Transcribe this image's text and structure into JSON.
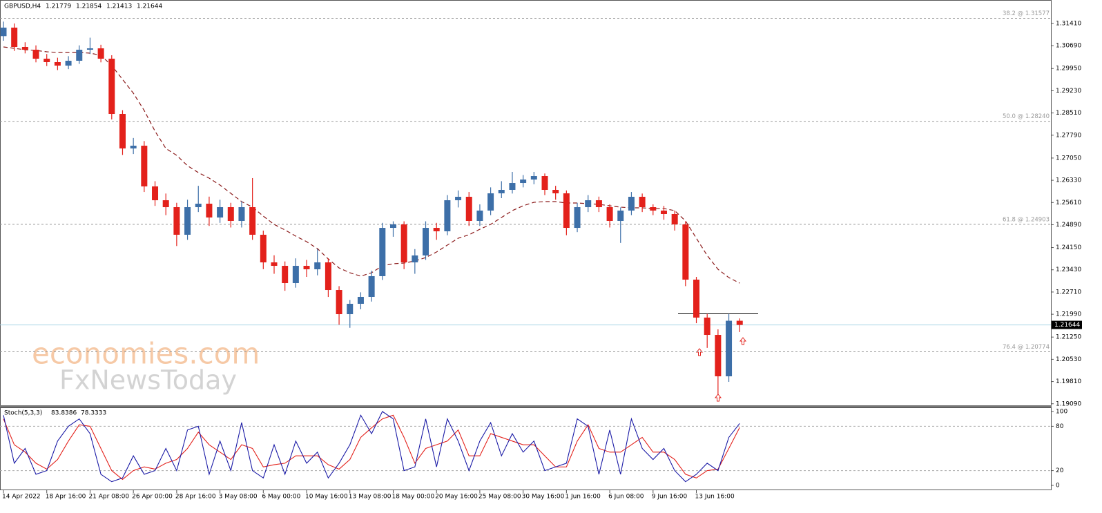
{
  "chart_data": [
    {
      "type": "candlestick",
      "title": "GBPUSD,H4",
      "categories": [
        "14 Apr 2022",
        null,
        null,
        null,
        "18 Apr 16:00",
        null,
        null,
        null,
        "21 Apr 08:00",
        null,
        null,
        null,
        "26 Apr 00:00",
        null,
        null,
        null,
        "28 Apr 16:00",
        null,
        null,
        null,
        "3 May 08:00",
        null,
        null,
        null,
        "6 May 00:00",
        null,
        null,
        null,
        "10 May 16:00",
        null,
        null,
        null,
        "13 May 08:00",
        null,
        null,
        null,
        "18 May 00:00",
        null,
        null,
        null,
        "20 May 16:00",
        null,
        null,
        null,
        "25 May 08:00",
        null,
        null,
        null,
        "30 May 16:00",
        null,
        null,
        null,
        "1 Jun 16:00",
        null,
        null,
        null,
        "6 Jun 08:00",
        null,
        null,
        null,
        "9 Jun 16:00",
        null,
        null,
        null,
        "13 Jun 16:00",
        null,
        null,
        null,
        null
      ],
      "open": [
        1.31,
        1.31275,
        1.30649,
        1.30559,
        1.30269,
        1.30157,
        1.30045,
        1.30202,
        1.30559,
        1.30604,
        1.30269,
        1.28479,
        1.27361,
        1.2745,
        1.26131,
        1.25683,
        1.25459,
        1.24565,
        1.25459,
        1.25571,
        1.25124,
        1.25459,
        1.25012,
        1.25459,
        1.24565,
        1.2367,
        1.23558,
        1.22999,
        1.23558,
        1.23446,
        1.2367,
        1.22775,
        1.21992,
        1.22328,
        1.22552,
        1.23223,
        1.24788,
        1.249,
        1.2367,
        1.23894,
        1.24788,
        1.24677,
        1.25683,
        1.25795,
        1.25012,
        1.25348,
        1.25907,
        1.26019,
        1.26242,
        1.26354,
        1.26466,
        1.26019,
        1.25907,
        1.24788,
        1.25459,
        1.25683,
        1.25459,
        1.25012,
        1.25348,
        1.25795,
        1.25459,
        1.25348,
        1.25236,
        1.249,
        1.23111,
        1.21881,
        1.21321,
        1.19979,
        1.21779
      ],
      "high": [
        1.3147,
        1.3141,
        1.308,
        1.307,
        1.3042,
        1.303,
        1.3035,
        1.307,
        1.3095,
        1.3072,
        1.3038,
        1.286,
        1.277,
        1.276,
        1.263,
        1.259,
        1.256,
        1.257,
        1.2615,
        1.258,
        1.257,
        1.256,
        1.2565,
        1.264,
        1.247,
        1.239,
        1.237,
        1.238,
        1.2375,
        1.241,
        1.238,
        1.229,
        1.2245,
        1.227,
        1.234,
        1.2495,
        1.25,
        1.25,
        1.241,
        1.25,
        1.2495,
        1.2585,
        1.26,
        1.2595,
        1.2555,
        1.261,
        1.263,
        1.266,
        1.265,
        1.266,
        1.2655,
        1.2615,
        1.26,
        1.256,
        1.2585,
        1.258,
        1.2555,
        1.2545,
        1.2595,
        1.259,
        1.2555,
        1.255,
        1.2535,
        1.25,
        1.232,
        1.22,
        1.215,
        1.22,
        1.21854
      ],
      "low": [
        1.3085,
        1.3052,
        1.3044,
        1.3015,
        1.3003,
        1.299,
        1.2993,
        1.301,
        1.3042,
        1.3015,
        1.283,
        1.2715,
        1.2718,
        1.2595,
        1.255,
        1.252,
        1.242,
        1.244,
        1.253,
        1.2485,
        1.2495,
        1.248,
        1.248,
        1.244,
        1.2345,
        1.233,
        1.2275,
        1.2285,
        1.232,
        1.2325,
        1.2255,
        1.2165,
        1.2155,
        1.2215,
        1.224,
        1.231,
        1.245,
        1.2345,
        1.233,
        1.2375,
        1.244,
        1.2455,
        1.2545,
        1.2485,
        1.2485,
        1.252,
        1.2575,
        1.259,
        1.261,
        1.262,
        1.2585,
        1.257,
        1.2455,
        1.2465,
        1.253,
        1.253,
        1.248,
        1.243,
        1.252,
        1.253,
        1.252,
        1.2505,
        1.247,
        1.229,
        1.217,
        1.209,
        1.1938,
        1.198,
        1.21413
      ],
      "close": [
        1.31275,
        1.30649,
        1.30559,
        1.30269,
        1.30157,
        1.30045,
        1.30202,
        1.30559,
        1.30604,
        1.30269,
        1.28479,
        1.27361,
        1.2745,
        1.26131,
        1.25683,
        1.25459,
        1.24565,
        1.25459,
        1.25571,
        1.25124,
        1.25459,
        1.25012,
        1.25459,
        1.24565,
        1.2367,
        1.23558,
        1.22999,
        1.23558,
        1.23446,
        1.2367,
        1.22775,
        1.21992,
        1.22328,
        1.22552,
        1.23223,
        1.24788,
        1.249,
        1.2367,
        1.23894,
        1.24788,
        1.24677,
        1.25683,
        1.25795,
        1.25012,
        1.25348,
        1.25907,
        1.26019,
        1.26242,
        1.26354,
        1.26466,
        1.26019,
        1.25907,
        1.24788,
        1.25459,
        1.25683,
        1.25459,
        1.25012,
        1.25348,
        1.25795,
        1.25459,
        1.25348,
        1.25236,
        1.249,
        1.23111,
        1.21881,
        1.21321,
        1.19979,
        1.21779,
        1.21644
      ],
      "up_color": "#3d6fa8",
      "down_color": "#e3211b",
      "moving_average": {
        "color": "#8b1a1a",
        "values": [
          1.30649,
          1.30604,
          1.30559,
          1.30537,
          1.30492,
          1.3047,
          1.3047,
          1.3047,
          1.30448,
          1.3038,
          1.30045,
          1.29597,
          1.2915,
          1.28591,
          1.2792,
          1.27361,
          1.27137,
          1.26801,
          1.26578,
          1.26399,
          1.26175,
          1.25907,
          1.25638,
          1.25459,
          1.25168,
          1.249,
          1.24721,
          1.2452,
          1.24341,
          1.24117,
          1.23781,
          1.2349,
          1.23334,
          1.23222,
          1.23334,
          1.23558,
          1.23625,
          1.23647,
          1.23714,
          1.23826,
          1.24005,
          1.24229,
          1.24452,
          1.24564,
          1.24743,
          1.249,
          1.25124,
          1.25347,
          1.25504,
          1.25616,
          1.25638,
          1.25638,
          1.25593,
          1.25593,
          1.25571,
          1.25549,
          1.25504,
          1.25459,
          1.25437,
          1.25437,
          1.25414,
          1.25414,
          1.25347,
          1.25012,
          1.24452,
          1.23893,
          1.23446,
          1.23177,
          1.22998
        ]
      },
      "ylim": [
        1.1904,
        1.3217
      ],
      "yticks": [
        {
          "value": 1.3141,
          "label": "1.31410"
        },
        {
          "value": 1.3069,
          "label": "1.30690"
        },
        {
          "value": 1.2995,
          "label": "1.29950"
        },
        {
          "value": 1.2923,
          "label": "1.29230"
        },
        {
          "value": 1.2851,
          "label": "1.28510"
        },
        {
          "value": 1.2779,
          "label": "1.27790"
        },
        {
          "value": 1.2705,
          "label": "1.27050"
        },
        {
          "value": 1.2633,
          "label": "1.26330"
        },
        {
          "value": 1.2561,
          "label": "1.25610"
        },
        {
          "value": 1.2489,
          "label": "1.24890"
        },
        {
          "value": 1.2415,
          "label": "1.24150"
        },
        {
          "value": 1.2343,
          "label": "1.23430"
        },
        {
          "value": 1.2271,
          "label": "1.22710"
        },
        {
          "value": 1.2199,
          "label": "1.21990"
        },
        {
          "value": 1.2125,
          "label": "1.21250"
        },
        {
          "value": 1.2053,
          "label": "1.20530"
        },
        {
          "value": 1.1981,
          "label": "1.19810"
        },
        {
          "value": 1.1909,
          "label": "1.19090"
        }
      ],
      "levels": [
        {
          "value": 1.31577,
          "label": "38.2 @ 1.31577"
        },
        {
          "value": 1.2824,
          "label": "50.0 @ 1.28240"
        },
        {
          "value": 1.24903,
          "label": "61.8 @ 1.24903"
        },
        {
          "value": 1.20774,
          "label": "76.4 @ 1.20774"
        }
      ],
      "last_price": 1.21644,
      "last_price_color": "#a9d4e6",
      "resistance": 1.22005,
      "watermark": {
        "line1": "economies.com",
        "line2": "FxNewsToday"
      }
    },
    {
      "type": "line",
      "title": "Stoch(5,3,3)",
      "series": [
        {
          "color": "#1a1aa6",
          "values": [
            95,
            30,
            50,
            15,
            20,
            60,
            80,
            90,
            70,
            15,
            5,
            10,
            40,
            15,
            20,
            50,
            20,
            75,
            80,
            15,
            60,
            20,
            85,
            20,
            10,
            55,
            15,
            60,
            30,
            45,
            10,
            30,
            55,
            95,
            70,
            100,
            90,
            20,
            25,
            90,
            25,
            90,
            60,
            20,
            60,
            85,
            40,
            70,
            45,
            60,
            20,
            25,
            30,
            90,
            80,
            15,
            75,
            15,
            90,
            50,
            35,
            50,
            20,
            5,
            15,
            30,
            20,
            65,
            83.8386
          ]
        },
        {
          "color": "#e3211b",
          "values": [
            90,
            55,
            45,
            30,
            22,
            35,
            60,
            82,
            80,
            50,
            20,
            8,
            20,
            25,
            22,
            30,
            35,
            50,
            72,
            55,
            45,
            35,
            55,
            50,
            25,
            28,
            30,
            40,
            40,
            40,
            28,
            22,
            35,
            65,
            78,
            90,
            95,
            65,
            30,
            50,
            55,
            60,
            75,
            40,
            40,
            70,
            65,
            60,
            55,
            55,
            40,
            25,
            25,
            60,
            82,
            50,
            45,
            45,
            55,
            65,
            45,
            45,
            35,
            15,
            10,
            20,
            22,
            50,
            78.3333
          ]
        }
      ],
      "ylim": [
        0,
        100
      ],
      "yticks": [
        0,
        20,
        80,
        100
      ],
      "reference_lines": [
        20,
        80
      ]
    }
  ]
}
